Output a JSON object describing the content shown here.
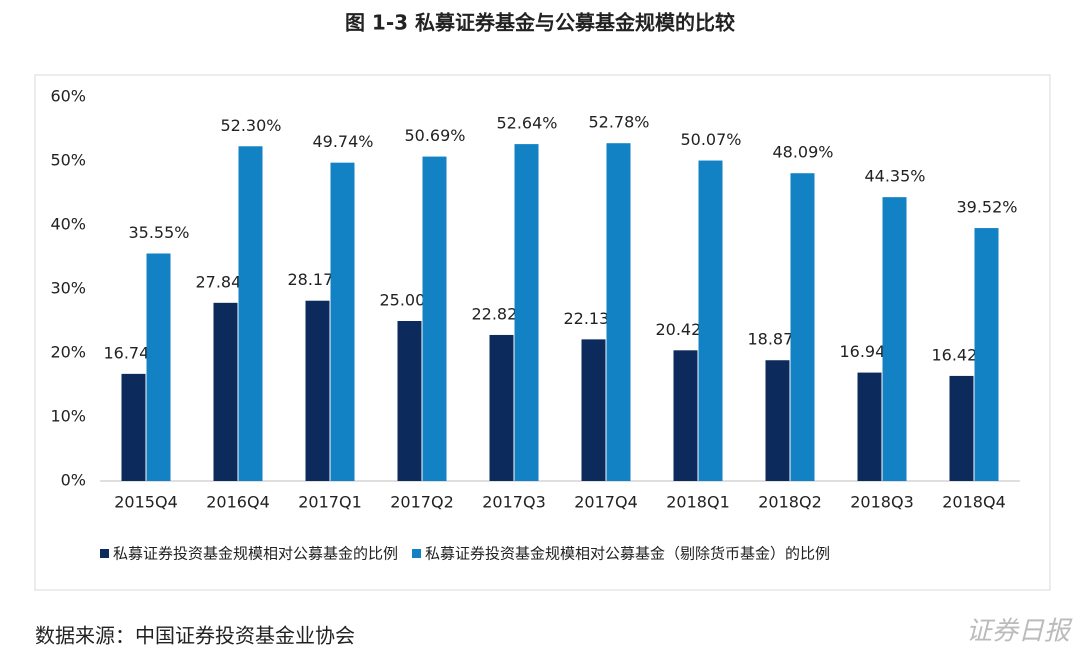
{
  "chart_data": {
    "type": "bar",
    "title": "图 1-3  私募证券基金与公募基金规模的比较",
    "categories": [
      "2015Q4",
      "2016Q4",
      "2017Q1",
      "2017Q2",
      "2017Q3",
      "2017Q4",
      "2018Q1",
      "2018Q2",
      "2018Q3",
      "2018Q4"
    ],
    "series": [
      {
        "name": "私募证券投资基金规模相对公募基金的比例",
        "color": "#0d2a5c",
        "values": [
          16.74,
          27.84,
          28.17,
          25.0,
          22.82,
          22.13,
          20.42,
          18.87,
          16.94,
          16.42
        ],
        "value_labels": [
          "16.74%",
          "27.84%",
          "28.17%",
          "25.00%",
          "22.82%",
          "22.13%",
          "20.42%",
          "18.87%",
          "16.94%",
          "16.42%"
        ]
      },
      {
        "name": "私募证券投资基金规模相对公募基金（剔除货币基金）的比例",
        "color": "#1282c4",
        "values": [
          35.55,
          52.3,
          49.74,
          50.69,
          52.64,
          52.78,
          50.07,
          48.09,
          44.35,
          39.52
        ],
        "value_labels": [
          "35.55%",
          "52.30%",
          "49.74%",
          "50.69%",
          "52.64%",
          "52.78%",
          "50.07%",
          "48.09%",
          "44.35%",
          "39.52%"
        ]
      }
    ],
    "ylim": [
      0,
      60
    ],
    "yticks": [
      {
        "value": 0,
        "label": "0%"
      },
      {
        "value": 10,
        "label": "10%"
      },
      {
        "value": 20,
        "label": "20%"
      },
      {
        "value": 30,
        "label": "30%"
      },
      {
        "value": 40,
        "label": "40%"
      },
      {
        "value": 50,
        "label": "50%"
      },
      {
        "value": 60,
        "label": "60%"
      }
    ],
    "grid": false,
    "legend": "bottom",
    "source": "数据来源：中国证券投资基金业协会",
    "watermark": "证券日报"
  }
}
